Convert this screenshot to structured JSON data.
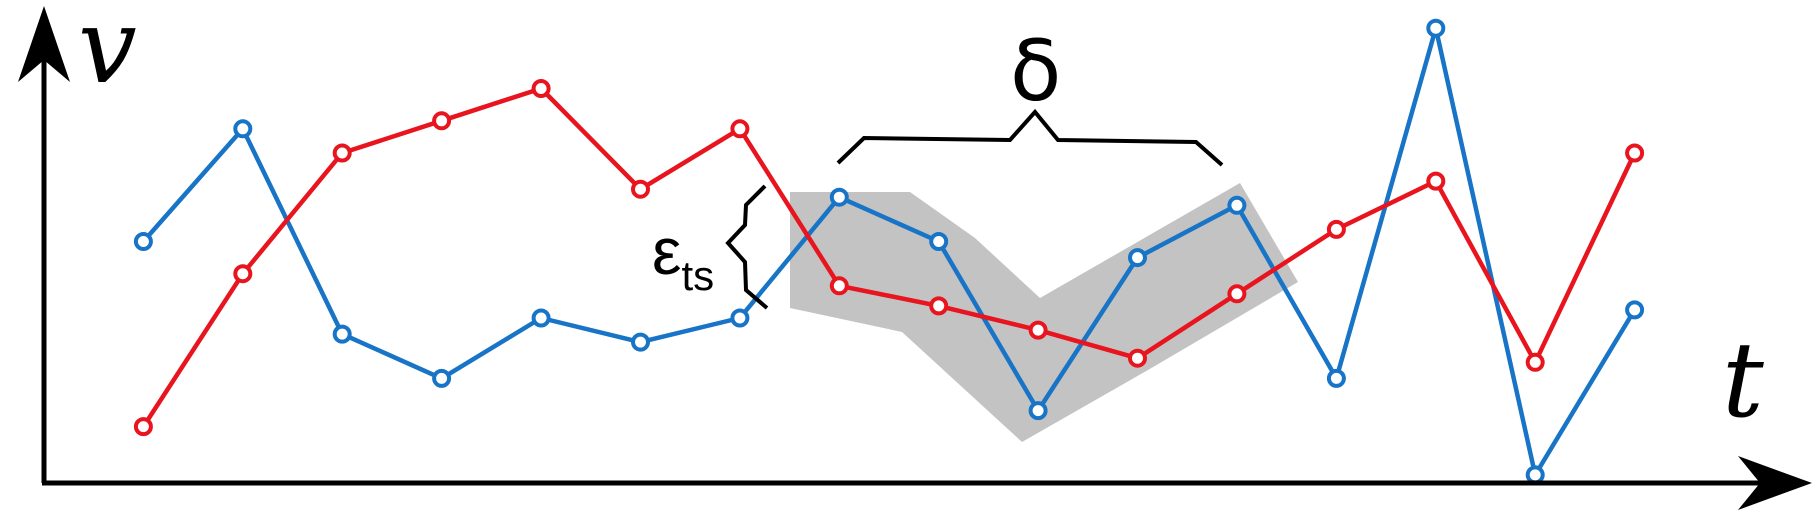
{
  "axes": {
    "y_label": "v",
    "x_label": "t"
  },
  "annotations": {
    "window_label": "δ",
    "tolerance_label": "ε",
    "tolerance_subscript": "ts"
  },
  "colors": {
    "axis": "#000000",
    "series_blue": "#1874c6",
    "series_red": "#e8141e",
    "band": "#c3c3c3",
    "brace": "#000000"
  },
  "chart_data": {
    "type": "line",
    "x": [
      1,
      2,
      3,
      4,
      5,
      6,
      7,
      8,
      9,
      10,
      11,
      12,
      13,
      14,
      15,
      16
    ],
    "series": [
      {
        "values": [
          6.0,
          8.8,
          3.7,
          2.6,
          4.1,
          3.5,
          4.1,
          7.1,
          6.0,
          1.8,
          5.6,
          6.9,
          2.6,
          11.3,
          0.2,
          4.3
        ]
      },
      {
        "values": [
          1.4,
          5.2,
          8.2,
          9.0,
          9.8,
          7.3,
          8.8,
          4.9,
          4.4,
          3.8,
          3.1,
          4.7,
          6.3,
          7.5,
          3.0,
          8.2
        ]
      }
    ],
    "xlim": [
      0,
      17
    ],
    "ylim": [
      0,
      12
    ],
    "grid": false
  }
}
